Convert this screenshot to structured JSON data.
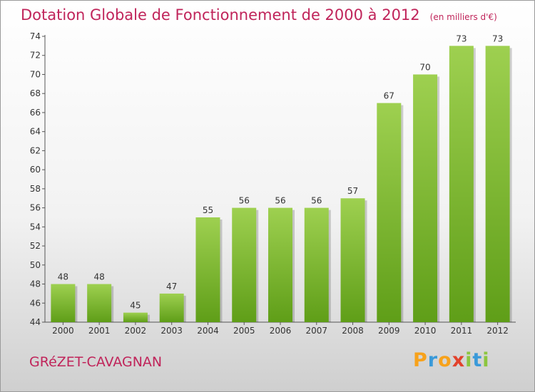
{
  "chart_data": {
    "type": "bar",
    "title": "Dotation Globale de Fonctionnement de 2000 à 2012",
    "subtitle": "(en milliers d'€)",
    "categories": [
      "2000",
      "2001",
      "2002",
      "2003",
      "2004",
      "2005",
      "2006",
      "2007",
      "2008",
      "2009",
      "2010",
      "2011",
      "2012"
    ],
    "values": [
      48,
      48,
      45,
      47,
      55,
      56,
      56,
      56,
      57,
      67,
      70,
      73,
      73
    ],
    "data_labels": [
      "48",
      "48",
      "45",
      "47",
      "55",
      "56",
      "56",
      "56",
      "57",
      "67",
      "70",
      "73",
      "73"
    ],
    "ylim": [
      44,
      74
    ],
    "yticks": [
      44,
      46,
      48,
      50,
      52,
      54,
      56,
      58,
      60,
      62,
      64,
      66,
      68,
      70,
      72,
      74
    ],
    "ytick_labels": [
      "44",
      "46",
      "48",
      "50",
      "52",
      "54",
      "56",
      "58",
      "60",
      "62",
      "64",
      "66",
      "68",
      "70",
      "72",
      "74"
    ],
    "xlabel": "",
    "ylabel": "",
    "grid": false,
    "bar_color": "#8cc63f"
  },
  "footer": {
    "commune": "GRéZET-CAVAGNAN",
    "logo_letters": [
      "P",
      "r",
      "o",
      "x",
      "i",
      "t",
      "i"
    ],
    "logo_colors": [
      "#f7a21b",
      "#3a9ad9",
      "#f7a21b",
      "#e2422c",
      "#8cc63f",
      "#3a9ad9",
      "#8cc63f"
    ]
  }
}
